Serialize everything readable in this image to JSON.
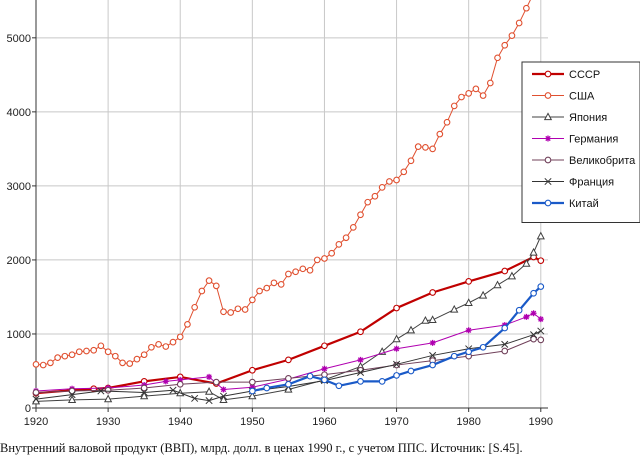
{
  "caption": "Внутренний валовой продукт (ВВП), млрд. долл. в ценах 1990 г., с учетом ППС. Источник: [S.45].",
  "chart_data": {
    "type": "line",
    "title": "",
    "xlabel": "",
    "ylabel": "",
    "xlim": [
      1920,
      1991
    ],
    "ylim": [
      0,
      5700
    ],
    "grid": true,
    "legend_position": "top-right",
    "x_ticks": [
      1920,
      1930,
      1940,
      1950,
      1960,
      1970,
      1980,
      1990
    ],
    "y_ticks": [
      0,
      1000,
      2000,
      3000,
      4000,
      5000
    ],
    "x_tick_labels": [
      "1920",
      "1930",
      "1940",
      "1950",
      "1960",
      "1970",
      "1980",
      "1990"
    ],
    "y_tick_labels": [
      "0",
      "1000",
      "2000",
      "3000",
      "4000",
      "5000"
    ],
    "series": [
      {
        "name": "СССР",
        "color": "#c00000",
        "marker": "circle",
        "bold": true,
        "x": [
          1920,
          1925,
          1928,
          1930,
          1935,
          1940,
          1945,
          1950,
          1955,
          1960,
          1965,
          1970,
          1975,
          1980,
          1985,
          1989,
          1990
        ],
        "y": [
          200,
          240,
          260,
          270,
          360,
          420,
          330,
          510,
          650,
          840,
          1030,
          1350,
          1560,
          1710,
          1850,
          2040,
          1990
        ]
      },
      {
        "name": "США",
        "color": "#e05030",
        "marker": "circle",
        "bold": false,
        "x": [
          1920,
          1921,
          1922,
          1923,
          1924,
          1925,
          1926,
          1927,
          1928,
          1929,
          1930,
          1931,
          1932,
          1933,
          1934,
          1935,
          1936,
          1937,
          1938,
          1939,
          1940,
          1941,
          1942,
          1943,
          1944,
          1945,
          1946,
          1947,
          1948,
          1949,
          1950,
          1951,
          1952,
          1953,
          1954,
          1955,
          1956,
          1957,
          1958,
          1959,
          1960,
          1961,
          1962,
          1963,
          1964,
          1965,
          1966,
          1967,
          1968,
          1969,
          1970,
          1971,
          1972,
          1973,
          1974,
          1975,
          1976,
          1977,
          1978,
          1979,
          1980,
          1981,
          1982,
          1983,
          1984,
          1985,
          1986,
          1987,
          1988,
          1989
        ],
        "y": [
          590,
          580,
          610,
          680,
          700,
          720,
          760,
          770,
          780,
          840,
          760,
          700,
          610,
          600,
          660,
          720,
          820,
          860,
          830,
          890,
          960,
          1130,
          1360,
          1580,
          1720,
          1650,
          1300,
          1290,
          1340,
          1330,
          1460,
          1580,
          1620,
          1690,
          1670,
          1810,
          1840,
          1880,
          1860,
          2000,
          2020,
          2090,
          2210,
          2300,
          2440,
          2610,
          2780,
          2860,
          2980,
          3060,
          3080,
          3190,
          3340,
          3530,
          3520,
          3500,
          3700,
          3860,
          4080,
          4200,
          4250,
          4310,
          4220,
          4390,
          4730,
          4900,
          5030,
          5200,
          5400,
          5600
        ]
      },
      {
        "name": "Япония",
        "color": "#404040",
        "marker": "triangle",
        "bold": false,
        "x": [
          1920,
          1925,
          1930,
          1935,
          1940,
          1944,
          1946,
          1950,
          1955,
          1960,
          1965,
          1968,
          1970,
          1972,
          1974,
          1975,
          1978,
          1980,
          1982,
          1984,
          1986,
          1988,
          1989,
          1990
        ],
        "y": [
          90,
          110,
          120,
          160,
          200,
          220,
          110,
          160,
          250,
          380,
          560,
          760,
          930,
          1050,
          1180,
          1190,
          1330,
          1420,
          1520,
          1660,
          1780,
          1950,
          2100,
          2320
        ]
      },
      {
        "name": "Германия",
        "color": "#b000b0",
        "marker": "star",
        "bold": false,
        "x": [
          1920,
          1925,
          1930,
          1935,
          1938,
          1940,
          1944,
          1946,
          1950,
          1955,
          1960,
          1965,
          1970,
          1975,
          1980,
          1985,
          1988,
          1989,
          1990
        ],
        "y": [
          230,
          260,
          270,
          310,
          360,
          380,
          420,
          250,
          280,
          390,
          530,
          650,
          800,
          880,
          1050,
          1120,
          1230,
          1280,
          1200
        ]
      },
      {
        "name": "Великобрита",
        "color": "#70405a",
        "marker": "circle",
        "bold": false,
        "x": [
          1920,
          1925,
          1930,
          1935,
          1940,
          1945,
          1950,
          1955,
          1960,
          1965,
          1970,
          1975,
          1980,
          1985,
          1989,
          1990
        ],
        "y": [
          210,
          230,
          240,
          270,
          320,
          350,
          350,
          400,
          450,
          510,
          580,
          640,
          700,
          770,
          930,
          920
        ]
      },
      {
        "name": "Франция",
        "color": "#333333",
        "marker": "cross",
        "bold": false,
        "x": [
          1920,
          1925,
          1929,
          1935,
          1939,
          1942,
          1944,
          1946,
          1950,
          1955,
          1960,
          1965,
          1970,
          1975,
          1980,
          1985,
          1989,
          1990
        ],
        "y": [
          120,
          180,
          230,
          210,
          240,
          130,
          100,
          160,
          230,
          290,
          370,
          480,
          590,
          710,
          800,
          860,
          990,
          1040
        ]
      },
      {
        "name": "Китай",
        "color": "#1a5ac8",
        "marker": "circle",
        "bold": true,
        "x": [
          1950,
          1952,
          1955,
          1958,
          1960,
          1962,
          1965,
          1968,
          1970,
          1972,
          1975,
          1978,
          1980,
          1982,
          1985,
          1987,
          1989,
          1990
        ],
        "y": [
          230,
          270,
          320,
          430,
          380,
          300,
          360,
          360,
          440,
          500,
          580,
          700,
          760,
          820,
          1080,
          1320,
          1550,
          1640
        ]
      }
    ]
  }
}
